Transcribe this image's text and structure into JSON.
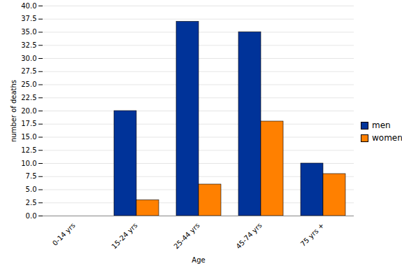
{
  "chart_data": {
    "type": "bar",
    "categories": [
      "0-14 yrs",
      "15-24 yrs",
      "25-44 yrs",
      "45-74 yrs",
      "75 yrs +"
    ],
    "series": [
      {
        "name": "men",
        "color": "#003399",
        "values": [
          0,
          20,
          37,
          35,
          10
        ]
      },
      {
        "name": "women",
        "color": "#ff8000",
        "values": [
          0,
          3,
          6,
          18,
          8
        ]
      }
    ],
    "x_label": "Age",
    "y_label": "number of deaths",
    "ylim": [
      0,
      40
    ],
    "yticks": [
      {
        "value": 0,
        "label": "0.0"
      },
      2.5,
      {
        "value": 5,
        "label": "5.0"
      },
      7.5,
      {
        "value": 10,
        "label": "10.0"
      },
      12.5,
      {
        "value": 15,
        "label": "15.0"
      },
      17.5,
      {
        "value": 20,
        "label": "20.0"
      },
      22.5,
      {
        "value": 25,
        "label": "25.0"
      },
      27.5,
      {
        "value": 30,
        "label": "30.0"
      },
      32.5,
      {
        "value": 35,
        "label": "35.0"
      },
      37.5,
      {
        "value": 40,
        "label": "40.0"
      }
    ],
    "grid": true,
    "legend": "right"
  }
}
